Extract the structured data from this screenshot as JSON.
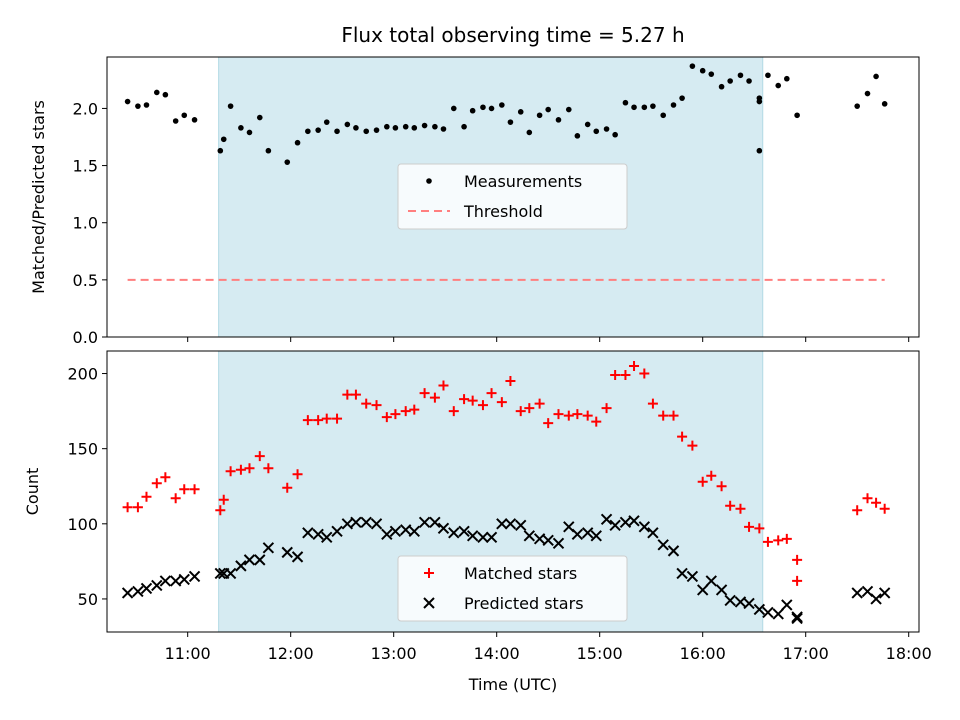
{
  "chart_data": [
    {
      "type": "scatter",
      "title": "Flux total observing time = 5.27 h",
      "xlabel": "",
      "ylabel": "Matched/Predicted stars",
      "xlim": [
        "10:13",
        "18:06"
      ],
      "ylim": [
        0,
        2.45
      ],
      "yticks": [
        0.0,
        0.5,
        1.0,
        1.5,
        2.0
      ],
      "ytick_labels": [
        "0.0",
        "0.5",
        "1.0",
        "1.5",
        "2.0"
      ],
      "shaded_span": [
        "11:18",
        "16:35"
      ],
      "legend": {
        "placement": "center",
        "entries": [
          "Measurements",
          "Threshold"
        ]
      },
      "series": [
        {
          "name": "Measurements",
          "marker": "dot",
          "color": "#000000",
          "points": [
            [
              "10:25",
              2.06
            ],
            [
              "10:31",
              2.02
            ],
            [
              "10:36",
              2.03
            ],
            [
              "10:42",
              2.14
            ],
            [
              "10:47",
              2.12
            ],
            [
              "10:53",
              1.89
            ],
            [
              "10:58",
              1.94
            ],
            [
              "11:04",
              1.9
            ],
            [
              "11:19",
              1.63
            ],
            [
              "11:21",
              1.73
            ],
            [
              "11:25",
              2.02
            ],
            [
              "11:31",
              1.83
            ],
            [
              "11:36",
              1.79
            ],
            [
              "11:42",
              1.92
            ],
            [
              "11:47",
              1.63
            ],
            [
              "11:58",
              1.53
            ],
            [
              "12:04",
              1.7
            ],
            [
              "12:10",
              1.8
            ],
            [
              "12:16",
              1.81
            ],
            [
              "12:21",
              1.88
            ],
            [
              "12:27",
              1.8
            ],
            [
              "12:33",
              1.86
            ],
            [
              "12:38",
              1.83
            ],
            [
              "12:44",
              1.8
            ],
            [
              "12:50",
              1.81
            ],
            [
              "12:56",
              1.84
            ],
            [
              "13:01",
              1.83
            ],
            [
              "13:07",
              1.84
            ],
            [
              "13:12",
              1.83
            ],
            [
              "13:18",
              1.85
            ],
            [
              "13:24",
              1.84
            ],
            [
              "13:29",
              1.82
            ],
            [
              "13:35",
              2.0
            ],
            [
              "13:41",
              1.84
            ],
            [
              "13:46",
              1.98
            ],
            [
              "13:52",
              2.01
            ],
            [
              "13:57",
              2.0
            ],
            [
              "14:03",
              2.03
            ],
            [
              "14:08",
              1.88
            ],
            [
              "14:14",
              1.97
            ],
            [
              "14:19",
              1.79
            ],
            [
              "14:25",
              1.94
            ],
            [
              "14:30",
              1.99
            ],
            [
              "14:36",
              1.9
            ],
            [
              "14:42",
              1.99
            ],
            [
              "14:47",
              1.76
            ],
            [
              "14:53",
              1.86
            ],
            [
              "14:58",
              1.8
            ],
            [
              "15:04",
              1.82
            ],
            [
              "15:09",
              1.77
            ],
            [
              "15:15",
              2.05
            ],
            [
              "15:20",
              2.01
            ],
            [
              "15:26",
              2.01
            ],
            [
              "15:31",
              2.02
            ],
            [
              "15:37",
              1.94
            ],
            [
              "15:43",
              2.03
            ],
            [
              "15:48",
              2.09
            ],
            [
              "15:54",
              2.37
            ],
            [
              "16:00",
              2.33
            ],
            [
              "16:05",
              2.3
            ],
            [
              "16:11",
              2.19
            ],
            [
              "16:16",
              2.24
            ],
            [
              "16:22",
              2.29
            ],
            [
              "16:27",
              2.24
            ],
            [
              "16:33",
              2.09
            ],
            [
              "16:38",
              2.29
            ],
            [
              "16:44",
              2.2
            ],
            [
              "16:49",
              2.26
            ],
            [
              "16:55",
              1.94
            ],
            [
              "16:33",
              2.06
            ],
            [
              "16:33",
              1.63
            ],
            [
              "17:30",
              2.02
            ],
            [
              "17:36",
              2.13
            ],
            [
              "17:41",
              2.28
            ],
            [
              "17:46",
              2.04
            ]
          ]
        },
        {
          "name": "Threshold",
          "marker": "dashed-line",
          "color": "#ff7f7f",
          "points": [
            [
              "10:25",
              0.5
            ],
            [
              "17:46",
              0.5
            ]
          ]
        }
      ]
    },
    {
      "type": "scatter",
      "title": "",
      "xlabel": "Time (UTC)",
      "ylabel": "Count",
      "xlim": [
        "10:13",
        "18:06"
      ],
      "ylim": [
        28,
        215
      ],
      "xticks": [
        "11:00",
        "12:00",
        "13:00",
        "14:00",
        "15:00",
        "16:00",
        "17:00",
        "18:00"
      ],
      "yticks": [
        50,
        100,
        150,
        200
      ],
      "ytick_labels": [
        "50",
        "100",
        "150",
        "200"
      ],
      "shaded_span": [
        "11:18",
        "16:35"
      ],
      "legend": {
        "placement": "lower center",
        "entries": [
          "Matched stars",
          "Predicted stars"
        ]
      },
      "series": [
        {
          "name": "Matched stars",
          "marker": "plus",
          "color": "#ff0000",
          "points": [
            [
              "10:25",
              111
            ],
            [
              "10:31",
              111
            ],
            [
              "10:36",
              118
            ],
            [
              "10:42",
              127
            ],
            [
              "10:47",
              131
            ],
            [
              "10:53",
              117
            ],
            [
              "10:58",
              123
            ],
            [
              "11:04",
              123
            ],
            [
              "11:19",
              109
            ],
            [
              "11:21",
              116
            ],
            [
              "11:25",
              135
            ],
            [
              "11:31",
              136
            ],
            [
              "11:36",
              137
            ],
            [
              "11:42",
              145
            ],
            [
              "11:47",
              137
            ],
            [
              "11:58",
              124
            ],
            [
              "12:04",
              133
            ],
            [
              "12:10",
              169
            ],
            [
              "12:16",
              169
            ],
            [
              "12:21",
              170
            ],
            [
              "12:27",
              170
            ],
            [
              "12:33",
              186
            ],
            [
              "12:38",
              186
            ],
            [
              "12:44",
              180
            ],
            [
              "12:50",
              179
            ],
            [
              "12:56",
              171
            ],
            [
              "13:01",
              173
            ],
            [
              "13:07",
              175
            ],
            [
              "13:12",
              176
            ],
            [
              "13:18",
              187
            ],
            [
              "13:24",
              184
            ],
            [
              "13:29",
              192
            ],
            [
              "13:35",
              175
            ],
            [
              "13:41",
              183
            ],
            [
              "13:46",
              182
            ],
            [
              "13:52",
              179
            ],
            [
              "13:57",
              187
            ],
            [
              "14:03",
              181
            ],
            [
              "14:08",
              195
            ],
            [
              "14:14",
              175
            ],
            [
              "14:19",
              177
            ],
            [
              "14:25",
              180
            ],
            [
              "14:30",
              167
            ],
            [
              "14:36",
              173
            ],
            [
              "14:42",
              172
            ],
            [
              "14:47",
              173
            ],
            [
              "14:53",
              172
            ],
            [
              "14:58",
              168
            ],
            [
              "15:04",
              177
            ],
            [
              "15:09",
              199
            ],
            [
              "15:15",
              199
            ],
            [
              "15:20",
              205
            ],
            [
              "15:26",
              200
            ],
            [
              "15:31",
              180
            ],
            [
              "15:37",
              172
            ],
            [
              "15:43",
              172
            ],
            [
              "15:48",
              158
            ],
            [
              "15:54",
              152
            ],
            [
              "16:00",
              128
            ],
            [
              "16:05",
              132
            ],
            [
              "16:11",
              125
            ],
            [
              "16:16",
              112
            ],
            [
              "16:22",
              110
            ],
            [
              "16:27",
              98
            ],
            [
              "16:33",
              97
            ],
            [
              "16:38",
              88
            ],
            [
              "16:44",
              89
            ],
            [
              "16:49",
              90
            ],
            [
              "16:55",
              76
            ],
            [
              "16:55",
              62
            ],
            [
              "17:30",
              109
            ],
            [
              "17:36",
              117
            ],
            [
              "17:41",
              114
            ],
            [
              "17:46",
              110
            ]
          ]
        },
        {
          "name": "Predicted stars",
          "marker": "x",
          "color": "#000000",
          "points": [
            [
              "10:25",
              54
            ],
            [
              "10:31",
              55
            ],
            [
              "10:36",
              57
            ],
            [
              "10:42",
              59
            ],
            [
              "10:47",
              62
            ],
            [
              "10:53",
              62
            ],
            [
              "10:58",
              63
            ],
            [
              "11:04",
              65
            ],
            [
              "11:19",
              67
            ],
            [
              "11:21",
              67
            ],
            [
              "11:25",
              67
            ],
            [
              "11:31",
              72
            ],
            [
              "11:36",
              76
            ],
            [
              "11:42",
              76
            ],
            [
              "11:47",
              84
            ],
            [
              "11:58",
              81
            ],
            [
              "12:04",
              78
            ],
            [
              "12:10",
              94
            ],
            [
              "12:16",
              93
            ],
            [
              "12:21",
              91
            ],
            [
              "12:27",
              95
            ],
            [
              "12:33",
              100
            ],
            [
              "12:38",
              101
            ],
            [
              "12:44",
              101
            ],
            [
              "12:50",
              100
            ],
            [
              "12:56",
              93
            ],
            [
              "13:01",
              95
            ],
            [
              "13:07",
              96
            ],
            [
              "13:12",
              95
            ],
            [
              "13:18",
              101
            ],
            [
              "13:24",
              101
            ],
            [
              "13:29",
              97
            ],
            [
              "13:35",
              94
            ],
            [
              "13:41",
              95
            ],
            [
              "13:46",
              92
            ],
            [
              "13:52",
              91
            ],
            [
              "13:57",
              91
            ],
            [
              "14:03",
              100
            ],
            [
              "14:08",
              100
            ],
            [
              "14:14",
              99
            ],
            [
              "14:19",
              92
            ],
            [
              "14:25",
              90
            ],
            [
              "14:30",
              89
            ],
            [
              "14:36",
              87
            ],
            [
              "14:42",
              98
            ],
            [
              "14:47",
              93
            ],
            [
              "14:53",
              94
            ],
            [
              "14:58",
              92
            ],
            [
              "15:04",
              103
            ],
            [
              "15:09",
              99
            ],
            [
              "15:15",
              101
            ],
            [
              "15:20",
              102
            ],
            [
              "15:26",
              98
            ],
            [
              "15:31",
              94
            ],
            [
              "15:37",
              86
            ],
            [
              "15:43",
              82
            ],
            [
              "15:48",
              67
            ],
            [
              "15:54",
              65
            ],
            [
              "16:00",
              56
            ],
            [
              "16:05",
              62
            ],
            [
              "16:11",
              56
            ],
            [
              "16:16",
              49
            ],
            [
              "16:22",
              48
            ],
            [
              "16:27",
              47
            ],
            [
              "16:33",
              43
            ],
            [
              "16:38",
              41
            ],
            [
              "16:44",
              40
            ],
            [
              "16:49",
              46
            ],
            [
              "16:55",
              38
            ],
            [
              "16:55",
              37
            ],
            [
              "17:30",
              54
            ],
            [
              "17:36",
              55
            ],
            [
              "17:41",
              50
            ],
            [
              "17:46",
              54
            ]
          ]
        }
      ]
    }
  ]
}
